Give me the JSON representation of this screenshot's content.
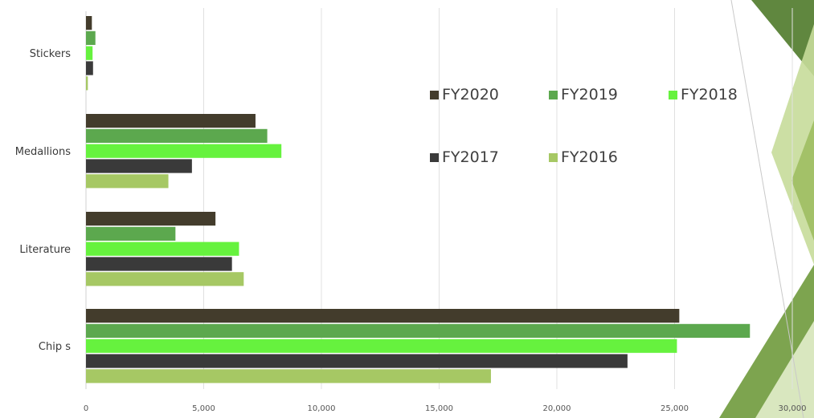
{
  "chart_data": {
    "type": "bar",
    "orientation": "horizontal",
    "categories": [
      "Stickers",
      "Medallions",
      "Literature",
      "Chip s"
    ],
    "series": [
      {
        "name": "FY2020",
        "color": "#433c2c",
        "values": [
          250,
          7200,
          5500,
          25200
        ]
      },
      {
        "name": "FY2019",
        "color": "#5ca84e",
        "values": [
          400,
          7700,
          3800,
          28200
        ]
      },
      {
        "name": "FY2018",
        "color": "#66f23e",
        "values": [
          280,
          8300,
          6500,
          25100
        ]
      },
      {
        "name": "FY2017",
        "color": "#3a3a3a",
        "values": [
          300,
          4500,
          6200,
          23000
        ]
      },
      {
        "name": "FY2016",
        "color": "#a6c864",
        "values": [
          80,
          3500,
          6700,
          17200
        ]
      }
    ],
    "xlim": [
      0,
      30000
    ],
    "xticks": [
      0,
      5000,
      10000,
      15000,
      20000,
      25000,
      30000
    ],
    "xtick_labels": [
      "0",
      "5,000",
      "10,000",
      "15,000",
      "20,000",
      "25,000",
      "30,000"
    ],
    "grid": true,
    "legend_position": "top-right",
    "title": "",
    "xlabel": "",
    "ylabel": ""
  },
  "decoration": {
    "colors": [
      "#4f7a2a",
      "#6f9a3c",
      "#9fbe62",
      "#c6db9a",
      "#e3eecb"
    ]
  }
}
